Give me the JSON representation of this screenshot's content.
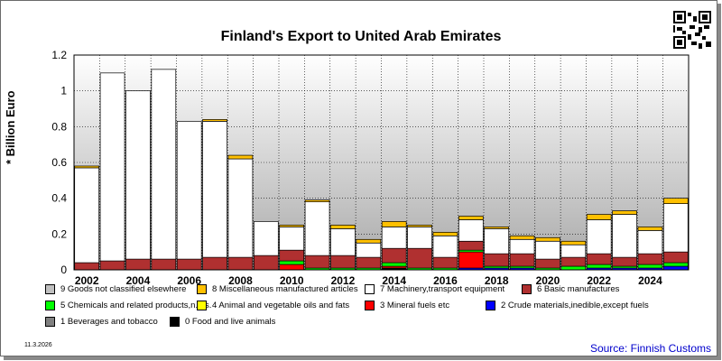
{
  "title": "Finland's Export to United Arab Emirates",
  "date_stamp": "11.3.2026",
  "source": "Source: Finnish Customs",
  "qr_icon": "qr-code-icon",
  "chart_data": {
    "type": "bar",
    "stacked": true,
    "title": "Finland's Export to United Arab Emirates",
    "ylabel": "* Billion Euro",
    "xlabel": "",
    "ylim": [
      0,
      1.2
    ],
    "yticks": [
      "0",
      "0.2",
      "0.4",
      "0.6",
      "0.8",
      "1",
      "1.2"
    ],
    "xtick_labels": [
      "2002",
      "2004",
      "2006",
      "2008",
      "2010",
      "2012",
      "2014",
      "2016",
      "2018",
      "2020",
      "2022",
      "2024"
    ],
    "grid": true,
    "legend_position": "bottom",
    "categories": [
      "2002",
      "2003",
      "2004",
      "2005",
      "2006",
      "2007",
      "2008",
      "2009",
      "2010",
      "2011",
      "2012",
      "2013",
      "2014",
      "2015",
      "2016",
      "2017",
      "2018",
      "2019",
      "2020",
      "2021",
      "2022",
      "2023",
      "2024",
      "2025"
    ],
    "series": [
      {
        "name": "0 Food and live animals",
        "color": "#000000",
        "values": [
          0,
          0,
          0,
          0,
          0,
          0,
          0,
          0,
          0,
          0,
          0,
          0,
          0.01,
          0,
          0,
          0,
          0,
          0,
          0,
          0,
          0,
          0,
          0,
          0
        ]
      },
      {
        "name": "1 Beverages and tobacco",
        "color": "#808080",
        "values": [
          0,
          0,
          0,
          0,
          0,
          0,
          0,
          0,
          0,
          0,
          0,
          0,
          0,
          0,
          0,
          0,
          0,
          0,
          0,
          0,
          0,
          0,
          0,
          0
        ]
      },
      {
        "name": "2 Crude materials,inedible,except fuels",
        "color": "#0000ff",
        "values": [
          0,
          0,
          0,
          0,
          0,
          0,
          0,
          0,
          0,
          0,
          0,
          0,
          0,
          0,
          0,
          0.01,
          0.01,
          0.01,
          0,
          0,
          0.01,
          0.01,
          0.01,
          0.02
        ]
      },
      {
        "name": "3 Mineral fuels etc",
        "color": "#ff0000",
        "values": [
          0,
          0,
          0,
          0,
          0,
          0,
          0,
          0,
          0.03,
          0,
          0,
          0,
          0.01,
          0,
          0,
          0.09,
          0,
          0,
          0,
          0,
          0,
          0,
          0,
          0
        ]
      },
      {
        "name": "4 Animal and vegetable oils and fats",
        "color": "#ffff00",
        "values": [
          0,
          0,
          0,
          0,
          0,
          0,
          0,
          0,
          0,
          0,
          0,
          0,
          0,
          0,
          0,
          0,
          0,
          0,
          0,
          0,
          0,
          0,
          0,
          0
        ]
      },
      {
        "name": "5 Chemicals and related products,n.e.s.",
        "color": "#00ff00",
        "values": [
          0,
          0,
          0,
          0,
          0,
          0,
          0,
          0,
          0.02,
          0.01,
          0.01,
          0.01,
          0.02,
          0.01,
          0.01,
          0.01,
          0.01,
          0.01,
          0.01,
          0.02,
          0.02,
          0.01,
          0.02,
          0.02
        ]
      },
      {
        "name": "6 Basic manufactures",
        "color": "#b03030",
        "values": [
          0.04,
          0.05,
          0.06,
          0.06,
          0.06,
          0.07,
          0.07,
          0.08,
          0.06,
          0.07,
          0.07,
          0.06,
          0.08,
          0.11,
          0.06,
          0.05,
          0.07,
          0.07,
          0.05,
          0.05,
          0.06,
          0.05,
          0.06,
          0.06
        ]
      },
      {
        "name": "7 Machinery,transport equipment",
        "color": "#ffffff",
        "values": [
          0.53,
          1.05,
          0.94,
          1.06,
          0.77,
          0.76,
          0.55,
          0.19,
          0.13,
          0.3,
          0.15,
          0.08,
          0.12,
          0.12,
          0.12,
          0.12,
          0.14,
          0.08,
          0.1,
          0.07,
          0.19,
          0.24,
          0.13,
          0.27
        ]
      },
      {
        "name": "8 Miscellaneous manufactured articles",
        "color": "#ffc000",
        "values": [
          0.01,
          0,
          0,
          0,
          0,
          0.01,
          0.02,
          0,
          0.01,
          0.01,
          0.02,
          0.02,
          0.03,
          0.01,
          0.02,
          0.02,
          0.01,
          0.02,
          0.02,
          0.02,
          0.03,
          0.02,
          0.02,
          0.03
        ]
      },
      {
        "name": "9 Goods not classified elsewhere",
        "color": "#c0c0c0",
        "values": [
          0,
          0,
          0,
          0,
          0,
          0,
          0,
          0,
          0,
          0,
          0,
          0,
          0,
          0,
          0,
          0,
          0,
          0,
          0,
          0,
          0,
          0,
          0,
          0
        ]
      }
    ]
  }
}
